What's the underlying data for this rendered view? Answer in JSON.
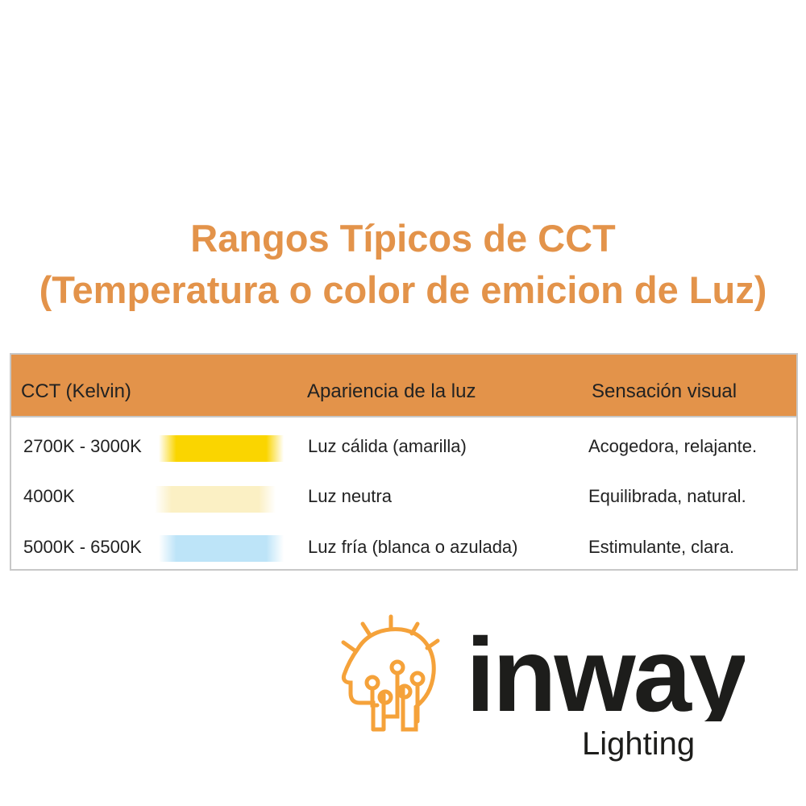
{
  "title": {
    "line1": "Rangos Típicos de CCT",
    "line2": "(Temperatura o color de emicion de Luz)"
  },
  "table": {
    "headers": [
      "CCT (Kelvin)",
      "Apariencia de la luz",
      "Sensación visual"
    ],
    "rows": [
      {
        "cct": "2700K - 3000K",
        "swatch_color": "#FAD500",
        "appearance": "Luz cálida (amarilla)",
        "sensation": "Acogedora, relajante."
      },
      {
        "cct": "4000K",
        "swatch_color": "#FBF0C4",
        "appearance": "Luz neutra",
        "sensation": "Equilibrada, natural."
      },
      {
        "cct": "5000K - 6500K",
        "swatch_color": "#BDE4F8",
        "appearance": "Luz fría (blanca o azulada)",
        "sensation": "Estimulante, clara."
      }
    ]
  },
  "colors": {
    "accent": "#E3934A",
    "logo_orange": "#F5A23A",
    "logo_text": "#1d1d1b"
  },
  "logo": {
    "name": "inway",
    "tagline": "Lighting",
    "icon": "head-circuit-bulb-icon"
  }
}
